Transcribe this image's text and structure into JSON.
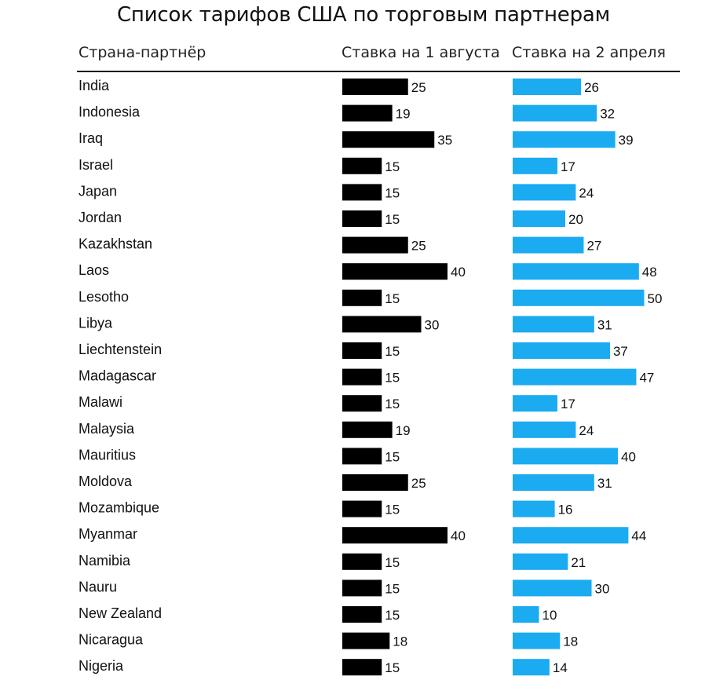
{
  "chart_data": {
    "type": "bar",
    "title": "Список тарифов США по торговым партнерам",
    "column_headers": {
      "country": "Страна-партнёр",
      "aug": "Ставка на 1 августа",
      "apr": "Ставка на 2 апреля"
    },
    "categories": [
      "India",
      "Indonesia",
      "Iraq",
      "Israel",
      "Japan",
      "Jordan",
      "Kazakhstan",
      "Laos",
      "Lesotho",
      "Libya",
      "Liechtenstein",
      "Madagascar",
      "Malawi",
      "Malaysia",
      "Mauritius",
      "Moldova",
      "Mozambique",
      "Myanmar",
      "Namibia",
      "Nauru",
      "New Zealand",
      "Nicaragua",
      "Nigeria"
    ],
    "series": [
      {
        "name": "Ставка на 1 августа",
        "color": "#000000",
        "values": [
          25,
          19,
          35,
          15,
          15,
          15,
          25,
          40,
          15,
          30,
          15,
          15,
          15,
          19,
          15,
          25,
          15,
          40,
          15,
          15,
          15,
          18,
          15
        ]
      },
      {
        "name": "Ставка на 2 апреля",
        "color": "#1aabf0",
        "values": [
          26,
          32,
          39,
          17,
          24,
          20,
          27,
          48,
          50,
          31,
          37,
          47,
          17,
          24,
          40,
          31,
          16,
          44,
          21,
          30,
          10,
          18,
          14
        ]
      }
    ],
    "xlim": [
      0,
      50
    ],
    "grid": false,
    "legend": "column headers"
  }
}
